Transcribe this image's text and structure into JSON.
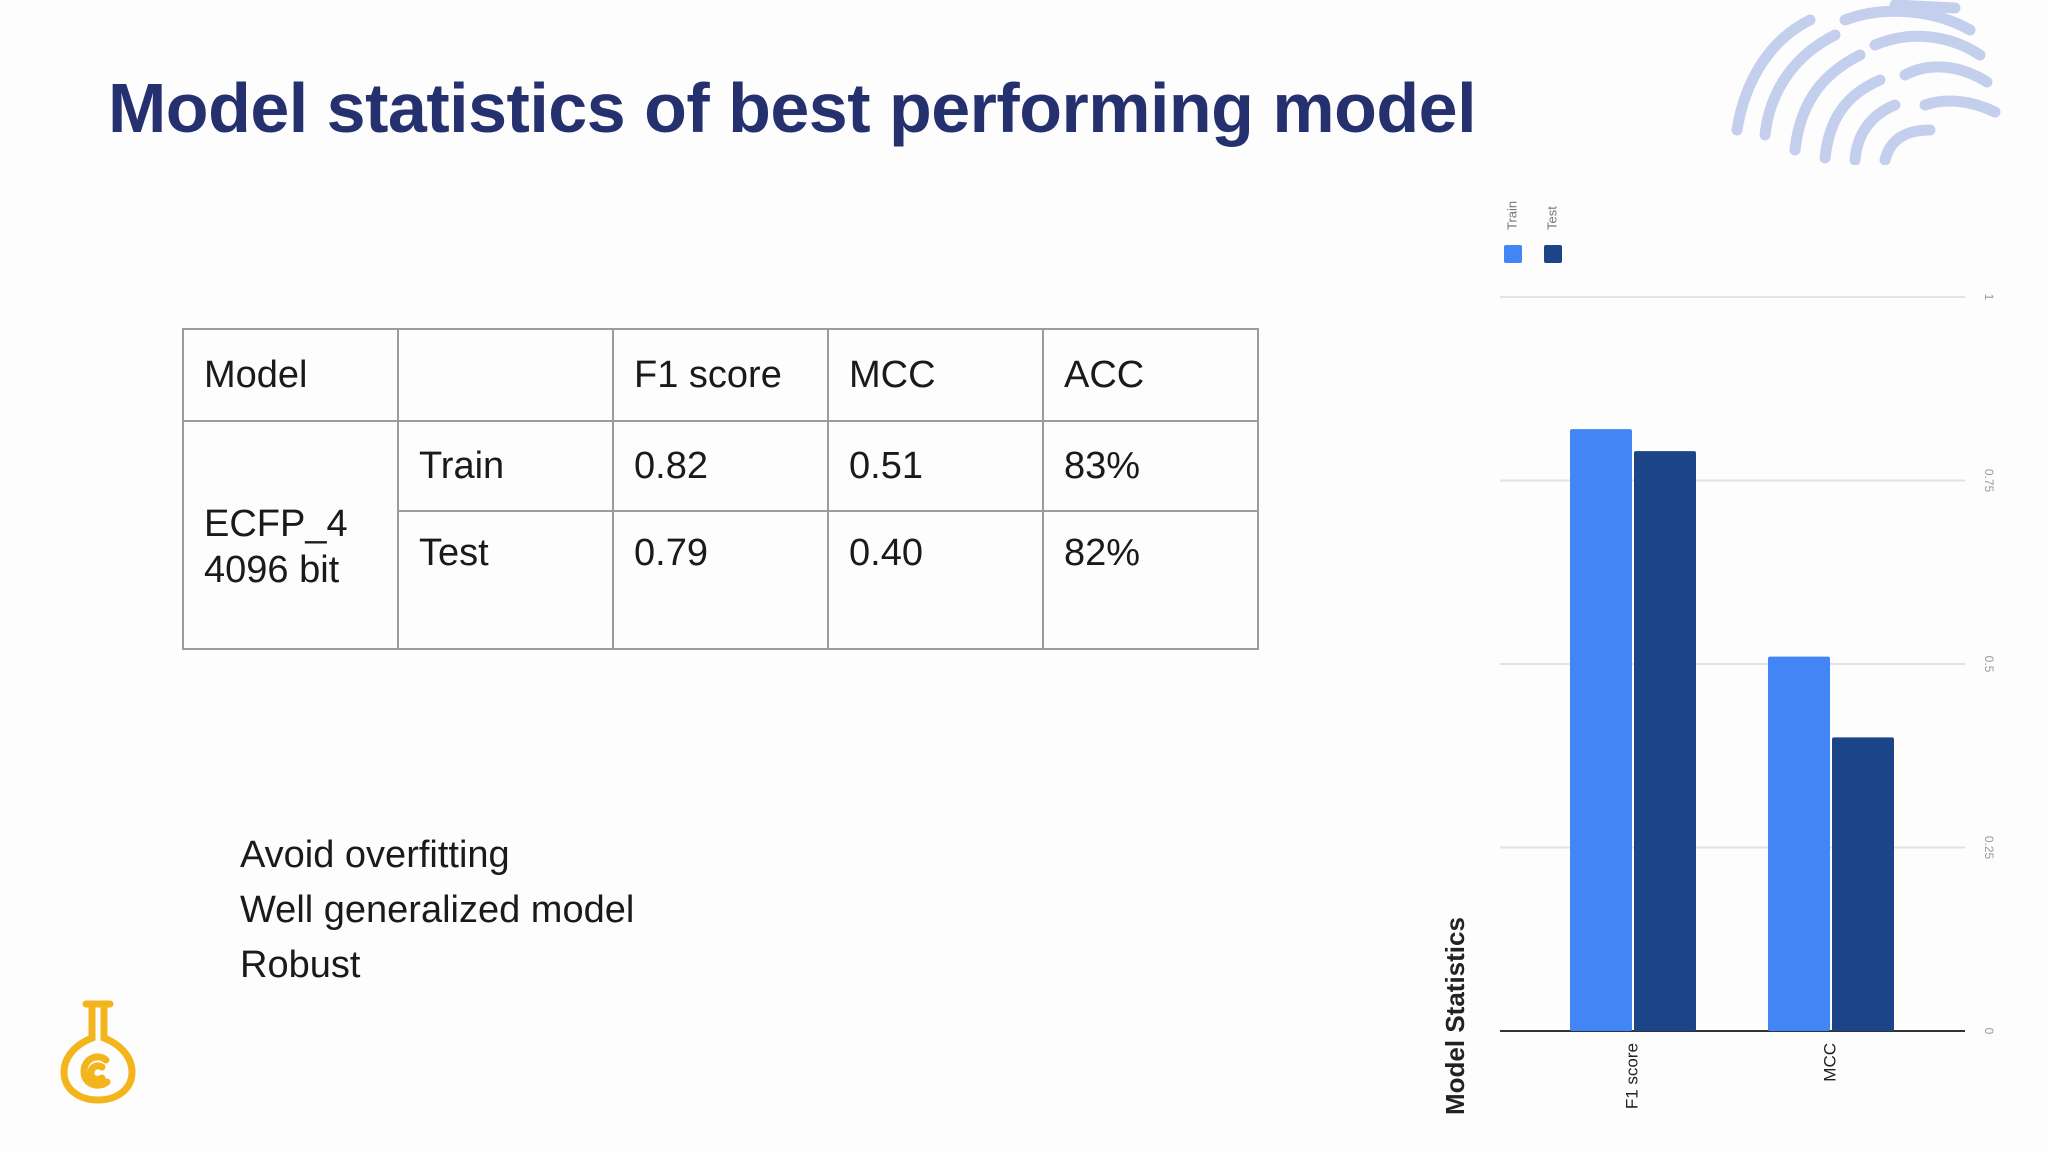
{
  "slide": {
    "title": "Model statistics of best performing model"
  },
  "table": {
    "headers": [
      "Model",
      "",
      "F1 score",
      "MCC",
      "ACC"
    ],
    "model_lines": [
      "ECFP_4",
      "4096 bit"
    ],
    "rows": [
      {
        "split": "Train",
        "f1": "0.82",
        "mcc": "0.51",
        "acc": "83%"
      },
      {
        "split": "Test",
        "f1": "0.79",
        "mcc": "0.40",
        "acc": "82%"
      }
    ]
  },
  "notes": [
    "Avoid overfitting",
    "Well generalized model",
    "Robust"
  ],
  "colors": {
    "title": "#25306e",
    "train": "#4285f4",
    "test": "#1c4587",
    "logo_fingerprint": "#b9c8ea",
    "logo_flask": "#f3b51b"
  },
  "icons": {
    "top_right": "fingerprint-logo",
    "bottom_left": "flask-logo"
  },
  "chart_data": {
    "type": "bar",
    "title": "",
    "xlabel": "Model Statistics",
    "ylabel": "",
    "categories": [
      "F1 score",
      "MCC"
    ],
    "series": [
      {
        "name": "Train",
        "values": [
          0.82,
          0.51
        ]
      },
      {
        "name": "Test",
        "values": [
          0.79,
          0.4
        ]
      }
    ],
    "ylim": [
      0,
      1
    ],
    "yticks": [
      "0",
      "0.25",
      "0.5",
      "0.75",
      "1"
    ],
    "orientation": "rotated 90deg (value axis printed on the right side, labels vertical)",
    "grid": true,
    "legend": "top-left"
  }
}
